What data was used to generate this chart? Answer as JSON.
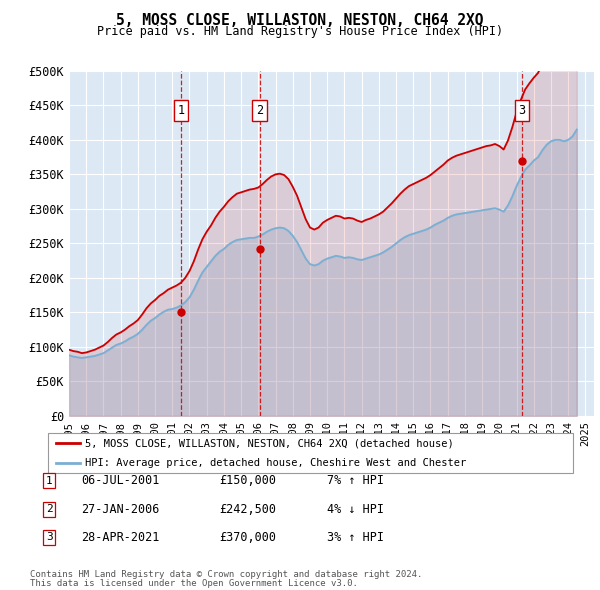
{
  "title": "5, MOSS CLOSE, WILLASTON, NESTON, CH64 2XQ",
  "subtitle": "Price paid vs. HM Land Registry's House Price Index (HPI)",
  "ylim": [
    0,
    500000
  ],
  "yticks": [
    0,
    50000,
    100000,
    150000,
    200000,
    250000,
    300000,
    350000,
    400000,
    450000,
    500000
  ],
  "ytick_labels": [
    "£0",
    "£50K",
    "£100K",
    "£150K",
    "£200K",
    "£250K",
    "£300K",
    "£350K",
    "£400K",
    "£450K",
    "£500K"
  ],
  "xlim_start": 1995.0,
  "xlim_end": 2025.5,
  "background_color": "#ffffff",
  "plot_background": "#dce9f5",
  "grid_color": "#ffffff",
  "red_line_color": "#cc0000",
  "blue_line_color": "#7aafd4",
  "vline_color": "#cc0000",
  "transactions": [
    {
      "num": 1,
      "date": "06-JUL-2001",
      "price": 150000,
      "pct": "7%",
      "dir": "↑",
      "year_x": 2001.51
    },
    {
      "num": 2,
      "date": "27-JAN-2006",
      "price": 242500,
      "pct": "4%",
      "dir": "↓",
      "year_x": 2006.07
    },
    {
      "num": 3,
      "date": "28-APR-2021",
      "price": 370000,
      "pct": "3%",
      "dir": "↑",
      "year_x": 2021.32
    }
  ],
  "legend_line1": "5, MOSS CLOSE, WILLASTON, NESTON, CH64 2XQ (detached house)",
  "legend_line2": "HPI: Average price, detached house, Cheshire West and Chester",
  "footer1": "Contains HM Land Registry data © Crown copyright and database right 2024.",
  "footer2": "This data is licensed under the Open Government Licence v3.0."
}
